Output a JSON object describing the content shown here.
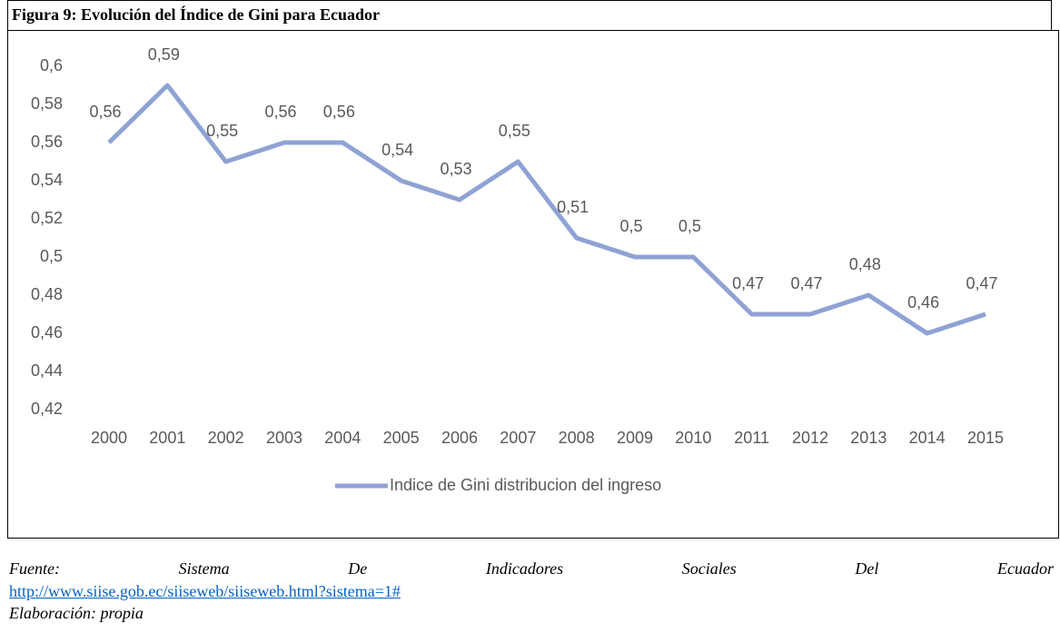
{
  "header": {
    "title": "Figura 9: Evolución del Índice de Gini para Ecuador"
  },
  "chart_data": {
    "type": "line",
    "categories": [
      "2000",
      "2001",
      "2002",
      "2003",
      "2004",
      "2005",
      "2006",
      "2007",
      "2008",
      "2009",
      "2010",
      "2011",
      "2012",
      "2013",
      "2014",
      "2015"
    ],
    "series": [
      {
        "name": "Indice de Gini distribucion del ingreso",
        "color": "#8fa2d4",
        "values": [
          0.56,
          0.59,
          0.55,
          0.56,
          0.56,
          0.54,
          0.53,
          0.55,
          0.51,
          0.5,
          0.5,
          0.47,
          0.47,
          0.48,
          0.46,
          0.47
        ],
        "value_labels": [
          "0,56",
          "0,59",
          "0,55",
          "0,56",
          "0,56",
          "0,54",
          "0,53",
          "0,55",
          "0,51",
          "0,5",
          "0,5",
          "0,47",
          "0,47",
          "0,48",
          "0,46",
          "0,47"
        ]
      }
    ],
    "ylim": [
      0.42,
      0.6
    ],
    "yticks": [
      {
        "value": 0.42,
        "label": "0,42"
      },
      {
        "value": 0.44,
        "label": "0,44"
      },
      {
        "value": 0.46,
        "label": "0,46"
      },
      {
        "value": 0.48,
        "label": "0,48"
      },
      {
        "value": 0.5,
        "label": "0,5"
      },
      {
        "value": 0.52,
        "label": "0,52"
      },
      {
        "value": 0.54,
        "label": "0,54"
      },
      {
        "value": 0.56,
        "label": "0,56"
      },
      {
        "value": 0.58,
        "label": "0,58"
      },
      {
        "value": 0.6,
        "label": "0,6"
      }
    ],
    "grid": false,
    "legend": "bottom"
  },
  "footer": {
    "source": "Fuente: Sistema De Indicadores Sociales Del Ecuador",
    "link": "http://www.siise.gob.ec/siiseweb/siiseweb.html?sistema=1#",
    "credit": "Elaboración: propia"
  }
}
